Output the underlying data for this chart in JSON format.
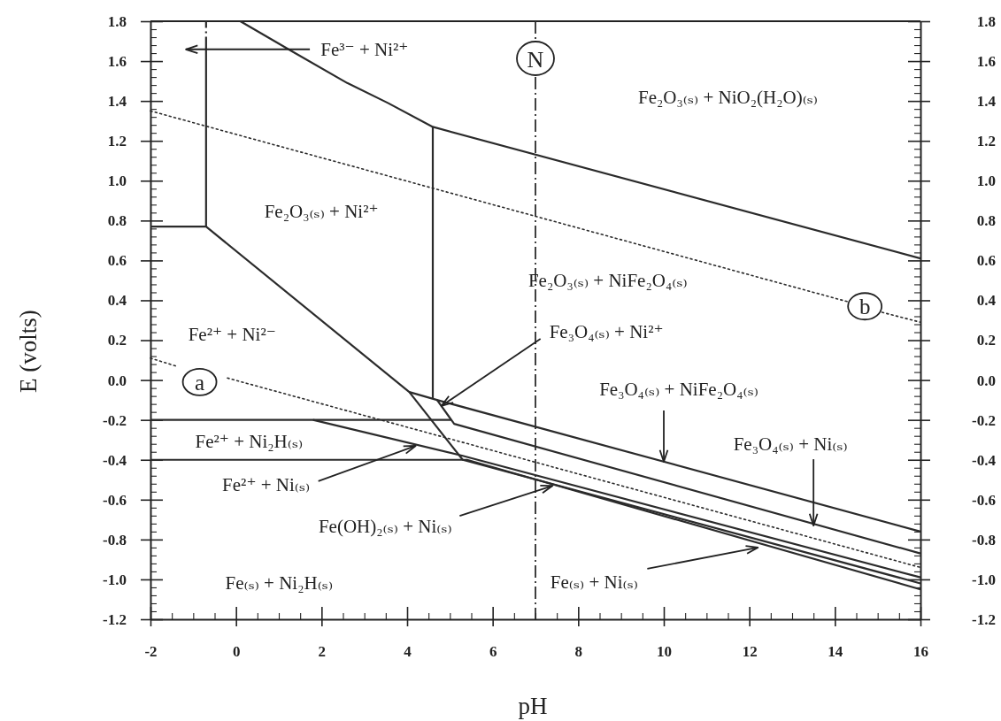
{
  "chart_data": {
    "type": "line",
    "xlabel": "pH",
    "ylabel": "E (volts)",
    "color": "#2b2b2b",
    "xlim": [
      -2,
      16
    ],
    "ylim": [
      -1.2,
      1.8
    ],
    "y2lim": [
      -1.2,
      1.8
    ],
    "xticks": [
      -2,
      {
        "value": -1.5,
        "label": null
      },
      {
        "value": -1,
        "label": null
      },
      {
        "value": -0.5,
        "label": null
      },
      0,
      {
        "value": 0.5,
        "label": null
      },
      {
        "value": 1,
        "label": null
      },
      {
        "value": 1.5,
        "label": null
      },
      2,
      {
        "value": 2.5,
        "label": null
      },
      {
        "value": 3,
        "label": null
      },
      {
        "value": 3.5,
        "label": null
      },
      4,
      {
        "value": 4.5,
        "label": null
      },
      {
        "value": 5,
        "label": null
      },
      {
        "value": 5.5,
        "label": null
      },
      6,
      {
        "value": 6.5,
        "label": null
      },
      {
        "value": 7,
        "label": null
      },
      {
        "value": 7.5,
        "label": null
      },
      8,
      {
        "value": 8.5,
        "label": null
      },
      {
        "value": 9,
        "label": null
      },
      {
        "value": 9.5,
        "label": null
      },
      10,
      {
        "value": 10.5,
        "label": null
      },
      {
        "value": 11,
        "label": null
      },
      {
        "value": 11.5,
        "label": null
      },
      12,
      {
        "value": 12.5,
        "label": null
      },
      {
        "value": 13,
        "label": null
      },
      {
        "value": 13.5,
        "label": null
      },
      14,
      {
        "value": 14.5,
        "label": null
      },
      {
        "value": 15,
        "label": null
      },
      {
        "value": 15.5,
        "label": null
      },
      16
    ],
    "yticks": [
      -1.2,
      {
        "value": -1.16,
        "label": null
      },
      {
        "value": -1.12,
        "label": null
      },
      {
        "value": -1.08,
        "label": null
      },
      {
        "value": -1.04,
        "label": null
      },
      {
        "value": -1,
        "label": "-1.0"
      },
      {
        "value": -0.96,
        "label": null
      },
      {
        "value": -0.92,
        "label": null
      },
      {
        "value": -0.88,
        "label": null
      },
      {
        "value": -0.84,
        "label": null
      },
      -0.8,
      {
        "value": -0.76,
        "label": null
      },
      {
        "value": -0.72,
        "label": null
      },
      {
        "value": -0.68,
        "label": null
      },
      {
        "value": -0.64,
        "label": null
      },
      -0.6,
      {
        "value": -0.56,
        "label": null
      },
      {
        "value": -0.52,
        "label": null
      },
      {
        "value": -0.48,
        "label": null
      },
      {
        "value": -0.44,
        "label": null
      },
      -0.4,
      {
        "value": -0.36,
        "label": null
      },
      {
        "value": -0.32,
        "label": null
      },
      {
        "value": -0.28,
        "label": null
      },
      {
        "value": -0.24,
        "label": null
      },
      -0.2,
      {
        "value": -0.16,
        "label": null
      },
      {
        "value": -0.12,
        "label": null
      },
      {
        "value": -0.08,
        "label": null
      },
      {
        "value": -0.04,
        "label": null
      },
      {
        "value": 0,
        "label": "0.0"
      },
      {
        "value": 0.04,
        "label": null
      },
      {
        "value": 0.08,
        "label": null
      },
      {
        "value": 0.12,
        "label": null
      },
      {
        "value": 0.16,
        "label": null
      },
      0.2,
      {
        "value": 0.24,
        "label": null
      },
      {
        "value": 0.28,
        "label": null
      },
      {
        "value": 0.32,
        "label": null
      },
      {
        "value": 0.36,
        "label": null
      },
      0.4,
      {
        "value": 0.44,
        "label": null
      },
      {
        "value": 0.48,
        "label": null
      },
      {
        "value": 0.52,
        "label": null
      },
      {
        "value": 0.56,
        "label": null
      },
      0.6,
      {
        "value": 0.64,
        "label": null
      },
      {
        "value": 0.68,
        "label": null
      },
      {
        "value": 0.72,
        "label": null
      },
      {
        "value": 0.76,
        "label": null
      },
      0.8,
      {
        "value": 0.84,
        "label": null
      },
      {
        "value": 0.88,
        "label": null
      },
      {
        "value": 0.92,
        "label": null
      },
      {
        "value": 0.96,
        "label": null
      },
      {
        "value": 1,
        "label": "1.0"
      },
      {
        "value": 1.04,
        "label": null
      },
      {
        "value": 1.08,
        "label": null
      },
      {
        "value": 1.12,
        "label": null
      },
      {
        "value": 1.16,
        "label": null
      },
      1.2,
      {
        "value": 1.24,
        "label": null
      },
      {
        "value": 1.28,
        "label": null
      },
      {
        "value": 1.32,
        "label": null
      },
      {
        "value": 1.36,
        "label": null
      },
      1.4,
      {
        "value": 1.44,
        "label": null
      },
      {
        "value": 1.48,
        "label": null
      },
      {
        "value": 1.52,
        "label": null
      },
      {
        "value": 1.56,
        "label": null
      },
      1.6,
      {
        "value": 1.64,
        "label": null
      },
      {
        "value": 1.68,
        "label": null
      },
      {
        "value": 1.72,
        "label": null
      },
      {
        "value": 1.76,
        "label": null
      },
      1.8
    ],
    "y2ticks": [
      -1.2,
      {
        "value": -1.16,
        "label": null
      },
      {
        "value": -1.12,
        "label": null
      },
      {
        "value": -1.08,
        "label": null
      },
      {
        "value": -1.04,
        "label": null
      },
      {
        "value": -1,
        "label": "-1.0"
      },
      {
        "value": -0.96,
        "label": null
      },
      {
        "value": -0.92,
        "label": null
      },
      {
        "value": -0.88,
        "label": null
      },
      {
        "value": -0.84,
        "label": null
      },
      -0.8,
      {
        "value": -0.76,
        "label": null
      },
      {
        "value": -0.72,
        "label": null
      },
      {
        "value": -0.68,
        "label": null
      },
      {
        "value": -0.64,
        "label": null
      },
      -0.6,
      {
        "value": -0.56,
        "label": null
      },
      {
        "value": -0.52,
        "label": null
      },
      {
        "value": -0.48,
        "label": null
      },
      {
        "value": -0.44,
        "label": null
      },
      -0.4,
      {
        "value": -0.36,
        "label": null
      },
      {
        "value": -0.32,
        "label": null
      },
      {
        "value": -0.28,
        "label": null
      },
      {
        "value": -0.24,
        "label": null
      },
      -0.2,
      {
        "value": -0.16,
        "label": null
      },
      {
        "value": -0.12,
        "label": null
      },
      {
        "value": -0.08,
        "label": null
      },
      {
        "value": -0.04,
        "label": null
      },
      {
        "value": 0,
        "label": "0.0"
      },
      {
        "value": 0.04,
        "label": null
      },
      {
        "value": 0.08,
        "label": null
      },
      {
        "value": 0.12,
        "label": null
      },
      {
        "value": 0.16,
        "label": null
      },
      0.2,
      {
        "value": 0.24,
        "label": null
      },
      {
        "value": 0.28,
        "label": null
      },
      {
        "value": 0.32,
        "label": null
      },
      {
        "value": 0.36,
        "label": null
      },
      0.4,
      {
        "value": 0.44,
        "label": null
      },
      {
        "value": 0.48,
        "label": null
      },
      {
        "value": 0.52,
        "label": null
      },
      {
        "value": 0.56,
        "label": null
      },
      0.6,
      {
        "value": 0.64,
        "label": null
      },
      {
        "value": 0.68,
        "label": null
      },
      {
        "value": 0.72,
        "label": null
      },
      {
        "value": 0.76,
        "label": null
      },
      0.8,
      {
        "value": 0.84,
        "label": null
      },
      {
        "value": 0.88,
        "label": null
      },
      {
        "value": 0.92,
        "label": null
      },
      {
        "value": 0.96,
        "label": null
      },
      {
        "value": 1,
        "label": "1.0"
      },
      {
        "value": 1.04,
        "label": null
      },
      {
        "value": 1.08,
        "label": null
      },
      {
        "value": 1.12,
        "label": null
      },
      {
        "value": 1.16,
        "label": null
      },
      1.2,
      {
        "value": 1.24,
        "label": null
      },
      {
        "value": 1.28,
        "label": null
      },
      {
        "value": 1.32,
        "label": null
      },
      {
        "value": 1.36,
        "label": null
      },
      1.4,
      {
        "value": 1.44,
        "label": null
      },
      {
        "value": 1.48,
        "label": null
      },
      {
        "value": 1.52,
        "label": null
      },
      {
        "value": 1.56,
        "label": null
      },
      1.6,
      {
        "value": 1.64,
        "label": null
      },
      {
        "value": 1.68,
        "label": null
      },
      {
        "value": 1.72,
        "label": null
      },
      {
        "value": 1.76,
        "label": null
      },
      1.8
    ],
    "series": [
      {
        "x": [
          0.1,
          1.3,
          2.6,
          3.55,
          4.6,
          16
        ],
        "values": [
          1.8,
          1.65,
          1.49,
          1.39,
          1.27,
          0.61
        ]
      },
      {
        "x": [
          -0.7,
          -0.7
        ],
        "values": [
          0.77,
          1.66
        ]
      },
      {
        "x": [
          -0.7,
          -0.7
        ],
        "values": [
          1.66,
          1.8
        ],
        "line_style": "dashed"
      },
      {
        "x": [
          -2,
          -0.7,
          4.05,
          5.3,
          16
        ],
        "values": [
          0.77,
          0.77,
          -0.06,
          -0.4,
          -1.02
        ]
      },
      {
        "x": [
          4.6,
          4.6
        ],
        "values": [
          1.27,
          -0.09
        ]
      },
      {
        "x": [
          4.05,
          4.7,
          16
        ],
        "values": [
          -0.06,
          -0.1,
          -0.76
        ]
      },
      {
        "x": [
          4.7,
          5.1,
          16
        ],
        "values": [
          -0.1,
          -0.22,
          -0.87
        ]
      },
      {
        "x": [
          -2,
          5.03
        ],
        "values": [
          -0.2,
          -0.2
        ]
      },
      {
        "x": [
          -2,
          5.4,
          16
        ],
        "values": [
          -0.4,
          -0.4,
          -1.05
        ]
      },
      {
        "x": [
          1.8,
          5.3,
          16
        ],
        "values": [
          -0.2,
          -0.38,
          -0.99
        ]
      },
      {
        "x": [
          -2,
          -1.4,
          -0.8,
          -0.2,
          16
        ],
        "values": [
          0.11,
          0.07,
          null,
          0.01,
          -0.94
        ],
        "line_style": "dotted"
      },
      {
        "x": [
          -2,
          14.35,
          14.7,
          15.1,
          16
        ],
        "values": [
          1.35,
          0.39,
          null,
          0.34,
          0.29
        ],
        "line_style": "dotted"
      }
    ],
    "ref_lines": [
      {
        "axis": "x",
        "value": 7,
        "label": "N",
        "line_style": "dashed"
      }
    ],
    "annotations": [
      "Fe³⁻ + Ni²⁺",
      "Fe₂O₃₍ₛ₎ + NiO₂(H₂O)₍ₛ₎",
      "Fe₂O₃₍ₛ₎ + Ni²⁺",
      "Fe₂O₃₍ₛ₎ + NiFe₂O₄₍ₛ₎",
      "Fe²⁺ + Ni²⁻",
      {
        "text": "Fe₃O₄₍ₛ₎ + Ni²⁺",
        "x": 4.8,
        "y": -0.13
      },
      {
        "text": "Fe₃O₄₍ₛ₎ + NiFe₂O₄₍ₛ₎",
        "x": 10,
        "y": -0.41
      },
      {
        "text": "Fe₃O₄₍ₛ₎ + Ni₍ₛ₎",
        "x": 13.5,
        "y": -0.73
      },
      "Fe²⁺ + Ni₂H₍ₛ₎",
      {
        "text": "Fe²⁺ + Ni₍ₛ₎",
        "x": 4.2,
        "y": -0.33
      },
      {
        "text": "Fe(OH)₂₍ₛ₎ + Ni₍ₛ₎",
        "x": 7.4,
        "y": -0.53
      },
      {
        "text": "Fe₍ₛ₎ + Ni₍ₛ₎",
        "x": 12.2,
        "y": -0.84
      },
      "Fe₍ₛ₎ + Ni₂H₍ₛ₎",
      {
        "text": "a",
        "x": -0.85,
        "y": -0.01
      },
      {
        "text": "b",
        "x": 14.7,
        "y": 0.37
      }
    ]
  }
}
